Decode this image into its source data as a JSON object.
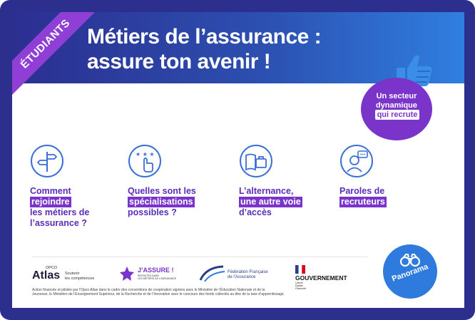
{
  "ribbon": {
    "text": "ÉTUDIANTS"
  },
  "title": {
    "line1": "Métiers de l’assurance :",
    "line2": "assure ton avenir !"
  },
  "badge": {
    "line1": "Un secteur",
    "line2": "dynamique",
    "line3": "qui recrute"
  },
  "items": [
    {
      "name": "comment",
      "l1": "Comment",
      "l2": "rejoindre",
      "l3": "les métiers de",
      "l4": "l’assurance ?"
    },
    {
      "name": "specialisations",
      "l1": "Quelles sont les",
      "l2": "spécialisations",
      "l3": "possibles ?"
    },
    {
      "name": "alternance",
      "l1": "L’alternance,",
      "l2": "une autre voie",
      "l3": "d’accès"
    },
    {
      "name": "paroles",
      "l1": "Paroles de",
      "l2": "recruteurs"
    }
  ],
  "logos": {
    "atlas": {
      "name": "Atlas",
      "tagline1": "Soutenir",
      "tagline2": "les compétences",
      "small": "OPCO"
    },
    "jassure": {
      "name": "J’ASSURE !",
      "sub1": "RECRUTEZ DANS",
      "sub2": "LES MÉTIERS DE L’ASSURANCE"
    },
    "ffa": {
      "line1": "Fédération Française",
      "line2": "de l’Assurance"
    },
    "gouv": {
      "name": "GOUVERNEMENT",
      "m1": "Liberté",
      "m2": "Égalité",
      "m3": "Fraternité"
    }
  },
  "footer": {
    "line1": "Action financée et pilotée par l’Opco Atlas dans le cadre des conventions de coopération signées avec le Ministère de l’Éducation Nationale et de la",
    "line2": "Jeunesse, le Ministère de l’Enseignement Supérieur, de la Recherche et de l’Innovation avec le concours des fonds collectés au titre de la taxe d’apprentissage."
  },
  "panorama": {
    "label": "Panorama"
  },
  "colors": {
    "frame": "#2d2f8f",
    "purple": "#7a34c9",
    "blue": "#2e7bdd"
  }
}
